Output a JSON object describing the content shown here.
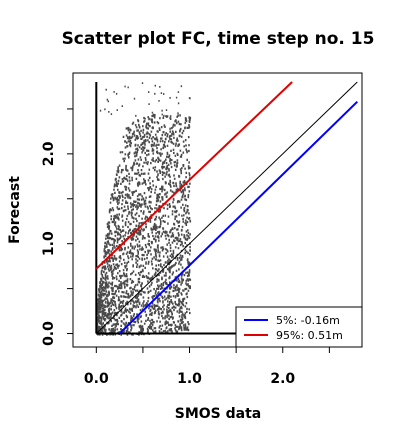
{
  "chart_data": {
    "type": "scatter",
    "title": "Scatter plot FC, time step no. 15",
    "xlabel": "SMOS data",
    "ylabel": "Forecast",
    "xlim": [
      -0.25,
      2.85
    ],
    "ylim": [
      -0.15,
      2.9
    ],
    "x_ticks": [
      0.0,
      0.5,
      1.0,
      1.5,
      2.0,
      2.5
    ],
    "x_tick_labels": [
      "0.0",
      "",
      "1.0",
      "",
      "2.0",
      ""
    ],
    "y_ticks": [
      0.0,
      0.5,
      1.0,
      1.5,
      2.0,
      2.5
    ],
    "y_tick_labels": [
      "0.0",
      "",
      "1.0",
      "",
      "2.0",
      ""
    ],
    "grid": false,
    "legend_position": "bottom-right",
    "point_color": "#4a4a4a",
    "scatter_region": {
      "x_range": [
        0.0,
        1.0
      ],
      "y_range": [
        0.0,
        2.8
      ],
      "lower_envelope": [
        [
          0.0,
          0.0
        ],
        [
          0.3,
          0.0
        ],
        [
          0.6,
          0.0
        ],
        [
          1.0,
          0.05
        ]
      ],
      "upper_envelope": [
        [
          0.0,
          0.35
        ],
        [
          0.15,
          1.55
        ],
        [
          0.3,
          2.3
        ],
        [
          0.5,
          2.45
        ],
        [
          0.7,
          2.45
        ],
        [
          1.0,
          2.45
        ]
      ],
      "max_y": 2.8
    },
    "series": [
      {
        "name": "5%: -0.16m",
        "kind": "line",
        "color": "#0000ff",
        "x": [
          0.25,
          2.8
        ],
        "y": [
          0.0,
          2.58
        ]
      },
      {
        "name": "95%:  0.51m",
        "kind": "line",
        "color": "#e00000",
        "x": [
          0.0,
          2.1
        ],
        "y": [
          0.72,
          2.8
        ]
      },
      {
        "kind": "line",
        "color": "#000000",
        "x": [
          0.0,
          2.8
        ],
        "y": [
          0.0,
          2.8
        ]
      }
    ],
    "reference_lines": [
      {
        "orientation": "vertical",
        "x": 0.0,
        "color": "#000000"
      },
      {
        "orientation": "horizontal",
        "y": 0.0,
        "color": "#000000"
      }
    ]
  }
}
